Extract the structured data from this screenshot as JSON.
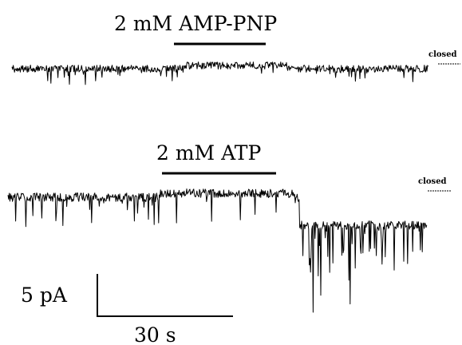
{
  "panels": [
    {
      "treatment_label": "2 mM AMP-PNP",
      "closed_label": "closed",
      "seed": 7,
      "profile": "amp"
    },
    {
      "treatment_label": "2 mM ATP",
      "closed_label": "closed",
      "seed": 13,
      "profile": "atp"
    }
  ],
  "scale_bar": {
    "current_label": "5 pA",
    "time_label": "30 s"
  }
}
